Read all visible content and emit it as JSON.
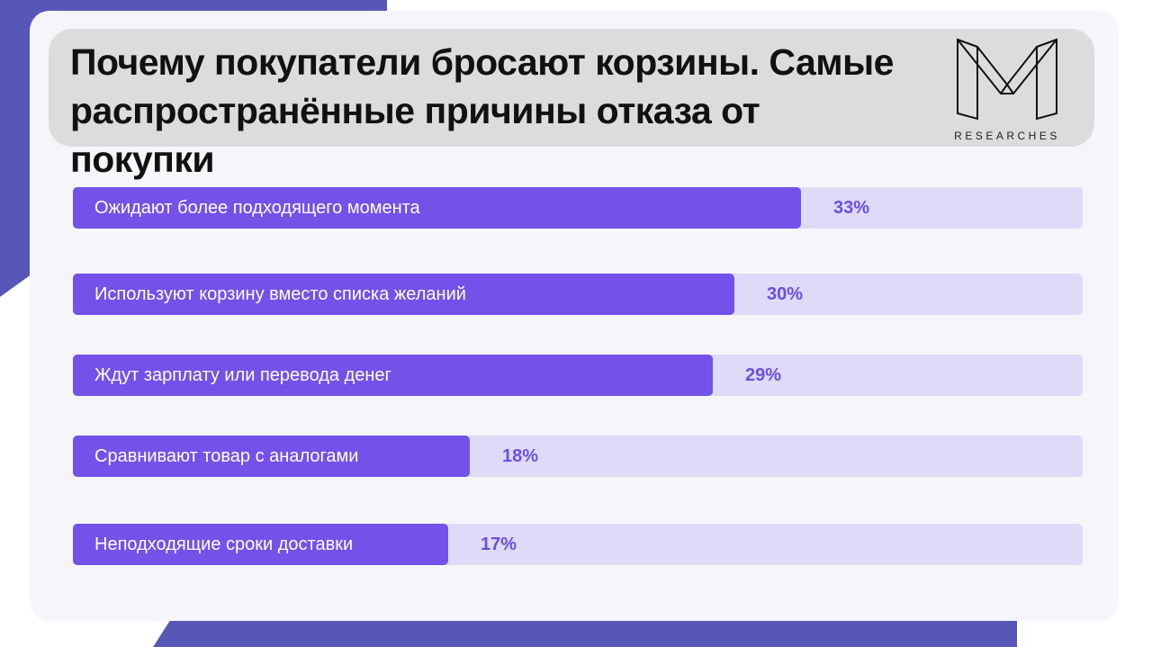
{
  "header": {
    "title": "Почему покупатели бросают корзины. Самые распространённые причины отказа от покупки",
    "logo_text": "RESEARCHES"
  },
  "colors": {
    "bar": "#7451e8",
    "track": "#dedaf7",
    "value_text": "#6b4fe0",
    "accent_shape": "#5757b8"
  },
  "chart_data": {
    "type": "bar",
    "orientation": "horizontal",
    "title": "Почему покупатели бросают корзины. Самые распространённые причины отказа от покупки",
    "categories": [
      "Ожидают более подходящего момента",
      "Используют корзину вместо списка желаний",
      "Ждут зарплату или перевода денег",
      "Сравнивают товар с аналогами",
      "Неподходящие сроки доставки"
    ],
    "values": [
      33,
      30,
      29,
      18,
      17
    ],
    "value_labels": [
      "33%",
      "30%",
      "29%",
      "18%",
      "17%"
    ],
    "unit": "%",
    "grid": false,
    "legend": "none"
  }
}
